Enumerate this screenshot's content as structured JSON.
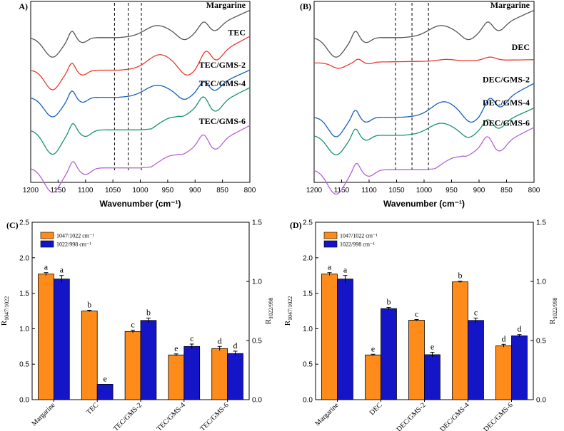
{
  "chart_data": [
    {
      "type": "line",
      "panel_label": "A)",
      "xlabel": "Wavenumber (cm⁻¹)",
      "xlim": [
        1200,
        800
      ],
      "xticks": [
        1200,
        1150,
        1100,
        1050,
        1000,
        950,
        900,
        850,
        800
      ],
      "reference_lines": [
        1047,
        1022,
        998
      ],
      "series": [
        {
          "name": "Margarine",
          "color": "#555555",
          "offset": 0.8,
          "shape": "a"
        },
        {
          "name": "TEC",
          "color": "#e8392e",
          "offset": 0.62,
          "shape": "b"
        },
        {
          "name": "TEC/GMS-2",
          "color": "#1560bd",
          "offset": 0.47,
          "shape": "a"
        },
        {
          "name": "TEC/GMS-4",
          "color": "#15956a",
          "offset": 0.29,
          "shape": "c"
        },
        {
          "name": "TEC/GMS-6",
          "color": "#b464d4",
          "offset": 0.08,
          "shape": "c"
        }
      ]
    },
    {
      "type": "line",
      "panel_label": "(B)",
      "xlabel": "Wavenumber (cm⁻¹)",
      "xlim": [
        1200,
        800
      ],
      "xticks": [
        1200,
        1150,
        1100,
        1050,
        1000,
        950,
        900,
        850,
        800
      ],
      "reference_lines": [
        1052,
        1022,
        992
      ],
      "series": [
        {
          "name": "Margarine",
          "color": "#555555",
          "offset": 0.8,
          "shape": "a"
        },
        {
          "name": "DEC",
          "color": "#e8392e",
          "offset": 0.66,
          "shape": "flat"
        },
        {
          "name": "DEC/GMS-2",
          "color": "#1560bd",
          "offset": 0.36,
          "shape": "b"
        },
        {
          "name": "DEC/GMS-4",
          "color": "#15956a",
          "offset": 0.26,
          "shape": "a"
        },
        {
          "name": "DEC/GMS-6",
          "color": "#b464d4",
          "offset": 0.07,
          "shape": "c"
        }
      ]
    },
    {
      "type": "bar",
      "panel_label": "(C)",
      "categories": [
        "Margarine",
        "TEC",
        "TEC/GMS-2",
        "TEC/GMS-4",
        "TEC/GMS-6"
      ],
      "ylabel_left": "R1047/1022",
      "ylabel_right": "R1022/998",
      "ylim_left": [
        0.0,
        2.5
      ],
      "ylim_right": [
        0.0,
        1.5
      ],
      "yticks_left": [
        "0.0",
        "0.5",
        "1.0",
        "1.5",
        "2.0",
        "2.5"
      ],
      "yticks_right": [
        "0.0",
        "0.5",
        "1.0",
        "1.5"
      ],
      "legend": [
        "1047/1022 cm⁻¹",
        "1022/998 cm⁻¹"
      ],
      "series": [
        {
          "name": "1047/1022 cm⁻¹",
          "axis": "left",
          "color": "#ff8c1a",
          "values": [
            1.77,
            1.25,
            0.96,
            0.63,
            0.72
          ],
          "errors": [
            0.02,
            0.01,
            0.02,
            0.015,
            0.03
          ],
          "letters": [
            "a",
            "b",
            "c",
            "e",
            "d"
          ]
        },
        {
          "name": "1022/998 cm⁻¹",
          "axis": "right",
          "color": "#1515c8",
          "values": [
            1.02,
            0.13,
            0.67,
            0.45,
            0.39
          ],
          "errors": [
            0.03,
            0.0,
            0.02,
            0.02,
            0.02
          ],
          "letters": [
            "a",
            "e",
            "b",
            "c",
            "d"
          ]
        }
      ]
    },
    {
      "type": "bar",
      "panel_label": "(D)",
      "categories": [
        "Margarine",
        "DEC",
        "DEC/GMS-2",
        "DEC/GMS-4",
        "DEC/GMS-6"
      ],
      "ylabel_left": "R1047/1022",
      "ylabel_right": "R1022/998",
      "ylim_left": [
        0.0,
        2.5
      ],
      "ylim_right": [
        0.0,
        1.5
      ],
      "yticks_left": [
        "0.0",
        "0.5",
        "1.0",
        "1.5",
        "2.0",
        "2.5"
      ],
      "yticks_right": [
        "0.0",
        "0.5",
        "1.0",
        "1.5"
      ],
      "legend": [
        "1047/1022 cm⁻¹",
        "1022/998 cm⁻¹"
      ],
      "series": [
        {
          "name": "1047/1022 cm⁻¹",
          "axis": "left",
          "color": "#ff8c1a",
          "values": [
            1.77,
            0.63,
            1.12,
            1.66,
            0.76
          ],
          "errors": [
            0.02,
            0.01,
            0.01,
            0.01,
            0.02
          ],
          "letters": [
            "a",
            "e",
            "c",
            "b",
            "d"
          ]
        },
        {
          "name": "1022/998 cm⁻¹",
          "axis": "right",
          "color": "#1515c8",
          "values": [
            1.02,
            0.77,
            0.38,
            0.67,
            0.54
          ],
          "errors": [
            0.03,
            0.01,
            0.02,
            0.02,
            0.01
          ],
          "letters": [
            "a",
            "b",
            "e",
            "c",
            "d"
          ]
        }
      ]
    }
  ]
}
